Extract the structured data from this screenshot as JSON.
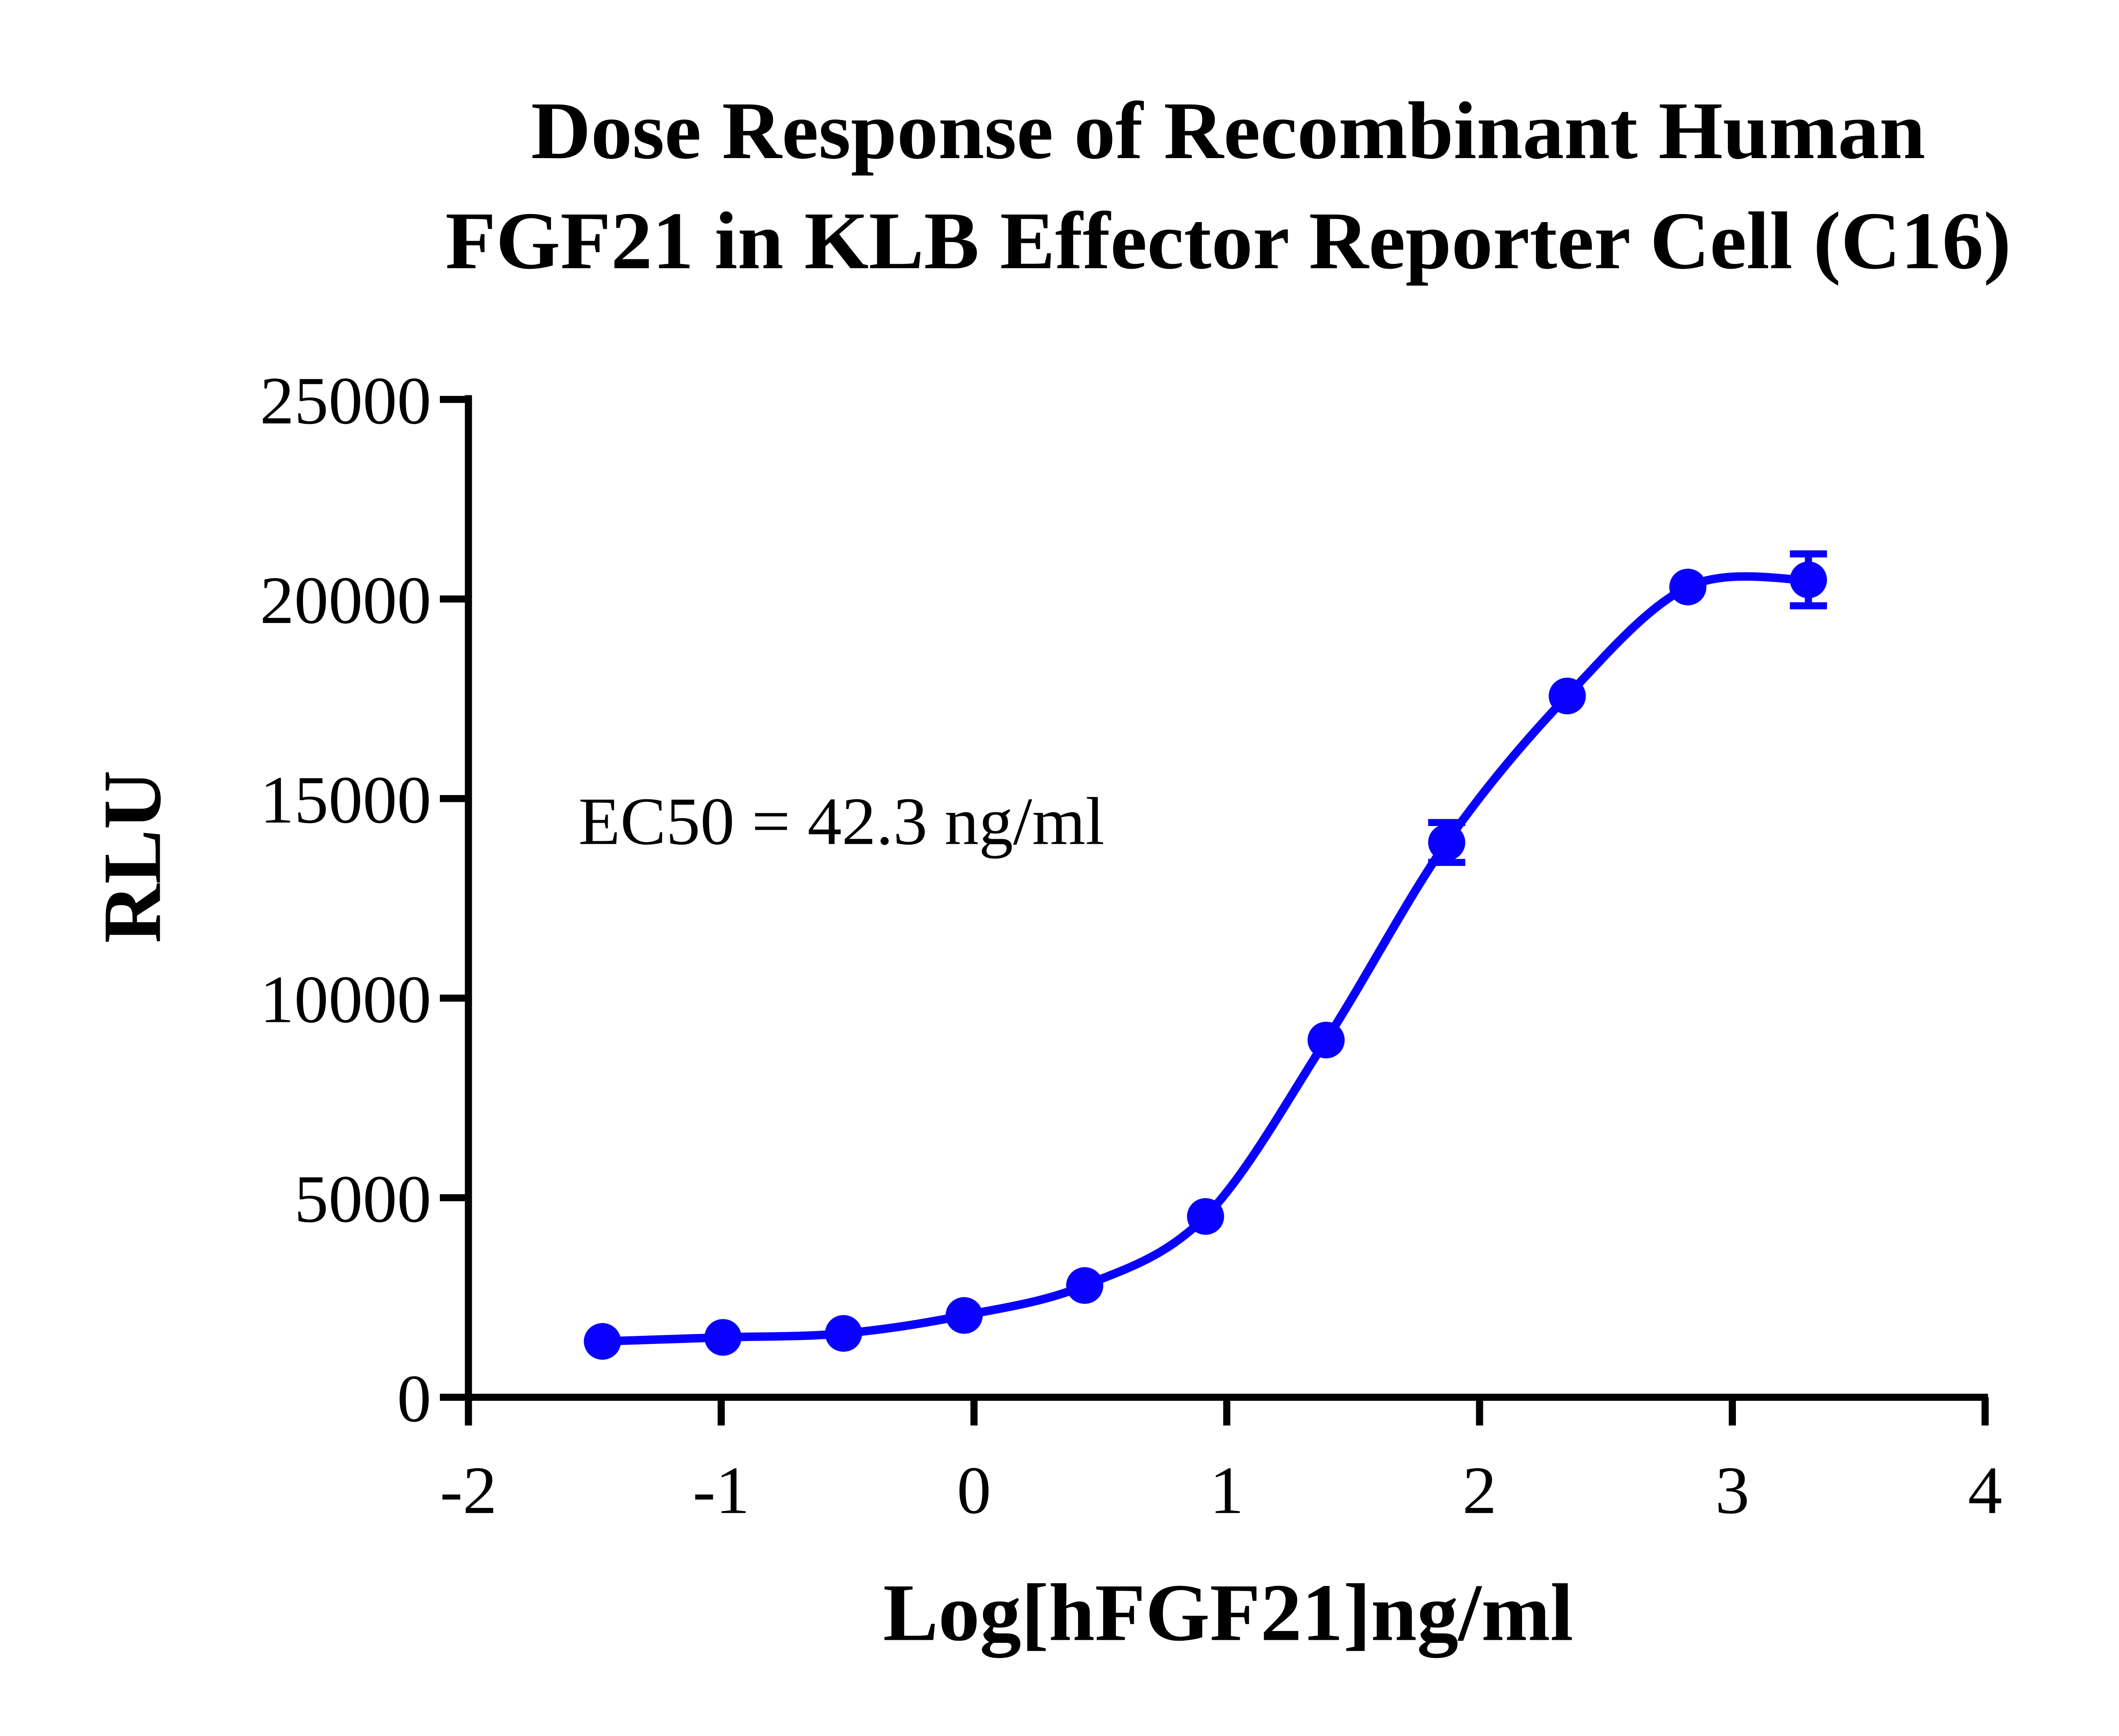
{
  "chart_data": {
    "type": "scatter",
    "title": [
      "Dose Response of Recombinant Human",
      "FGF21 in KLB Effector Reporter Cell (C16)"
    ],
    "x_label": "Log[hFGF21]ng/ml",
    "y_label": "RLU",
    "annotation": "EC50 = 42.3 ng/ml",
    "xlim": [
      -2,
      4
    ],
    "xticks": [
      -2,
      -1,
      0,
      1,
      2,
      3,
      4
    ],
    "ylim": [
      0,
      25000
    ],
    "yticks": [
      0,
      5000,
      10000,
      15000,
      20000,
      25000
    ],
    "grid": false,
    "series": [
      {
        "color": "#0a00ff",
        "x": [
          -1.47,
          -0.993,
          -0.516,
          -0.039,
          0.438,
          0.916,
          1.393,
          1.87,
          2.347,
          2.824,
          3.301
        ],
        "values": [
          1400,
          1500,
          1600,
          2050,
          2800,
          4530,
          8950,
          13900,
          17570,
          20300,
          20480
        ],
        "errors": [
          null,
          null,
          null,
          null,
          null,
          null,
          null,
          500,
          null,
          null,
          650
        ]
      }
    ]
  }
}
